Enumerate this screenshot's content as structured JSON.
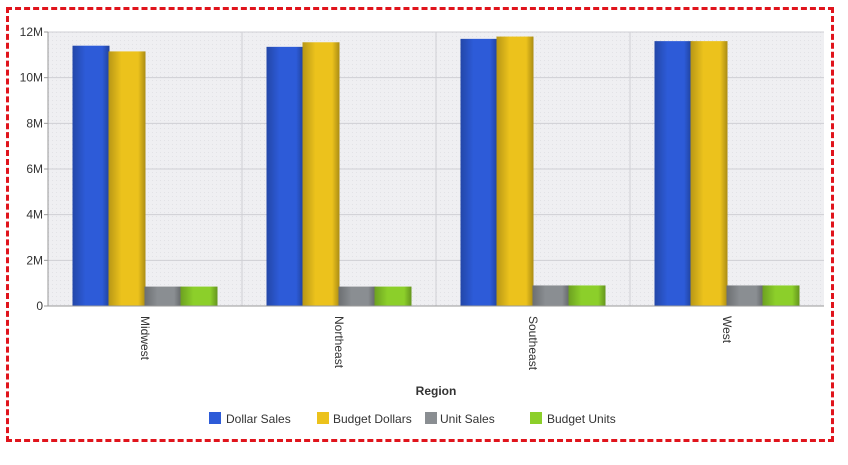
{
  "chart_data": {
    "type": "bar",
    "title": "",
    "xlabel": "Region",
    "ylabel": "",
    "categories": [
      "Midwest",
      "Northeast",
      "Southeast",
      "West"
    ],
    "series": [
      {
        "name": "Dollar Sales",
        "color": "#2d5bd8",
        "values": [
          11400000,
          11350000,
          11700000,
          11600000
        ]
      },
      {
        "name": "Budget Dollars",
        "color": "#ecc21c",
        "values": [
          11150000,
          11550000,
          11800000,
          11600000
        ]
      },
      {
        "name": "Unit Sales",
        "color": "#8a8e92",
        "values": [
          850000,
          850000,
          900000,
          900000
        ]
      },
      {
        "name": "Budget Units",
        "color": "#8ccf2a",
        "values": [
          850000,
          850000,
          900000,
          900000
        ]
      }
    ],
    "ylim": [
      0,
      12000000
    ],
    "yticks": [
      {
        "value": 0,
        "label": "0"
      },
      {
        "value": 2000000,
        "label": "2M"
      },
      {
        "value": 4000000,
        "label": "4M"
      },
      {
        "value": 6000000,
        "label": "6M"
      },
      {
        "value": 8000000,
        "label": "8M"
      },
      {
        "value": 10000000,
        "label": "10M"
      },
      {
        "value": 12000000,
        "label": "12M"
      }
    ],
    "grid": true,
    "legend_position": "bottom",
    "frame_color": "#e0141c"
  }
}
